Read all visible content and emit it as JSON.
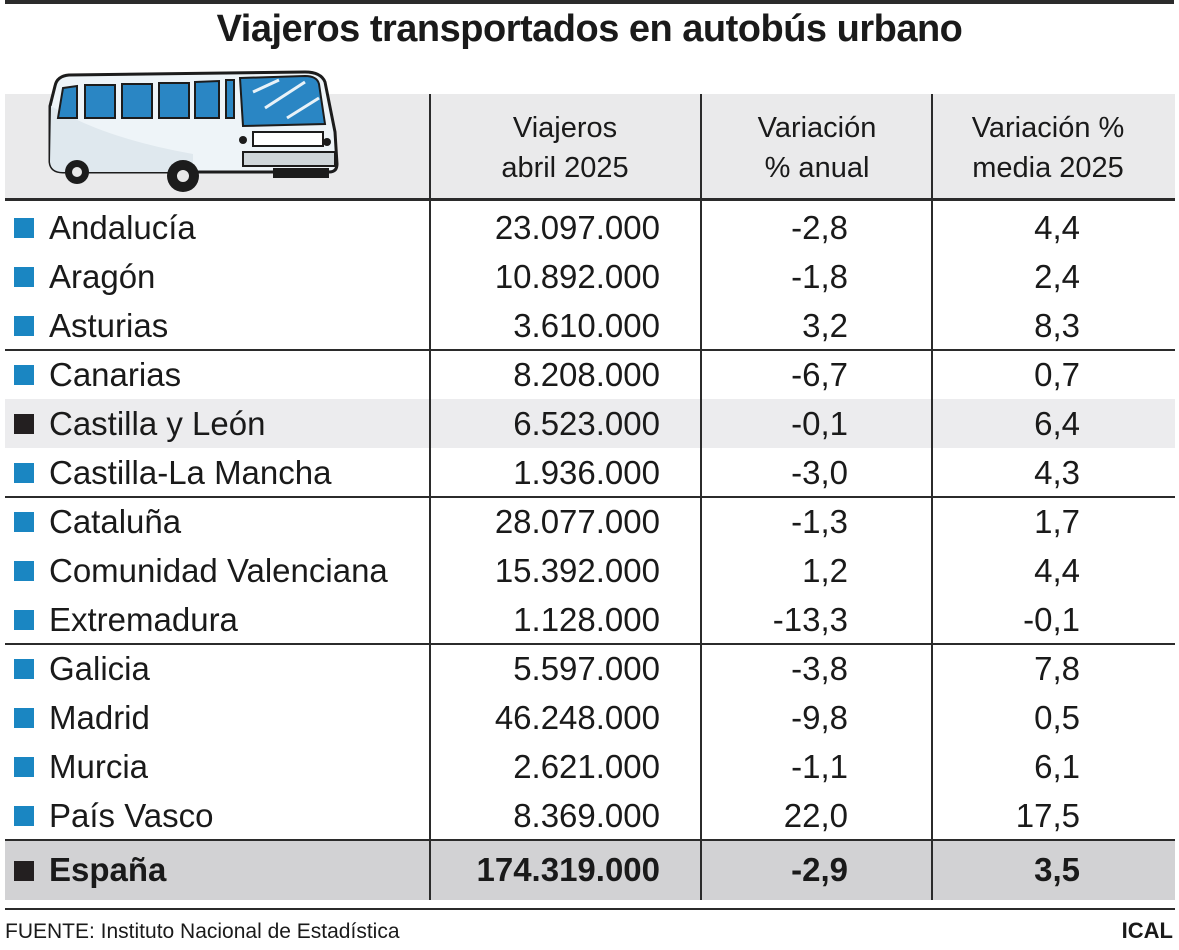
{
  "chart_data": {
    "type": "table",
    "title": "Viajeros transportados en autobús urbano",
    "columns": [
      {
        "line1": "Viajeros",
        "line2": "abril 2025"
      },
      {
        "line1": "Variación",
        "line2": "% anual"
      },
      {
        "line1": "Variación %",
        "line2": "media 2025"
      }
    ],
    "rows": [
      {
        "name": "Andalucía",
        "viajeros": "23.097.000",
        "anual": "-2,8",
        "media": "4,4",
        "color": "#1a86c2",
        "highlight": false
      },
      {
        "name": "Aragón",
        "viajeros": "10.892.000",
        "anual": "-1,8",
        "media": "2,4",
        "color": "#1a86c2",
        "highlight": false
      },
      {
        "name": "Asturias",
        "viajeros": "3.610.000",
        "anual": "3,2",
        "media": "8,3",
        "color": "#1a86c2",
        "highlight": false
      },
      {
        "name": "Canarias",
        "viajeros": "8.208.000",
        "anual": "-6,7",
        "media": "0,7",
        "color": "#1a86c2",
        "highlight": false
      },
      {
        "name": "Castilla y León",
        "viajeros": "6.523.000",
        "anual": "-0,1",
        "media": "6,4",
        "color": "#231f20",
        "highlight": true
      },
      {
        "name": "Castilla-La Mancha",
        "viajeros": "1.936.000",
        "anual": "-3,0",
        "media": "4,3",
        "color": "#1a86c2",
        "highlight": false
      },
      {
        "name": "Cataluña",
        "viajeros": "28.077.000",
        "anual": "-1,3",
        "media": "1,7",
        "color": "#1a86c2",
        "highlight": false
      },
      {
        "name": "Comunidad Valenciana",
        "viajeros": "15.392.000",
        "anual": "1,2",
        "media": "4,4",
        "color": "#1a86c2",
        "highlight": false
      },
      {
        "name": "Extremadura",
        "viajeros": "1.128.000",
        "anual": "-13,3",
        "media": "-0,1",
        "color": "#1a86c2",
        "highlight": false
      },
      {
        "name": "Galicia",
        "viajeros": "5.597.000",
        "anual": "-3,8",
        "media": "7,8",
        "color": "#1a86c2",
        "highlight": false
      },
      {
        "name": "Madrid",
        "viajeros": "46.248.000",
        "anual": "-9,8",
        "media": "0,5",
        "color": "#1a86c2",
        "highlight": false
      },
      {
        "name": "Murcia",
        "viajeros": "2.621.000",
        "anual": "-1,1",
        "media": "6,1",
        "color": "#1a86c2",
        "highlight": false
      },
      {
        "name": "País Vasco",
        "viajeros": "8.369.000",
        "anual": "22,0",
        "media": "17,5",
        "color": "#1a86c2",
        "highlight": false
      }
    ],
    "total": {
      "name": "España",
      "viajeros": "174.319.000",
      "anual": "-2,9",
      "media": "3,5",
      "color": "#231f20"
    },
    "group_breaks_after": [
      3,
      6,
      9,
      13
    ]
  },
  "footer": {
    "source": "FUENTE: Instituto Nacional de Estadística",
    "brand": "ICAL"
  },
  "illustration": {
    "icon": "bus-icon"
  }
}
